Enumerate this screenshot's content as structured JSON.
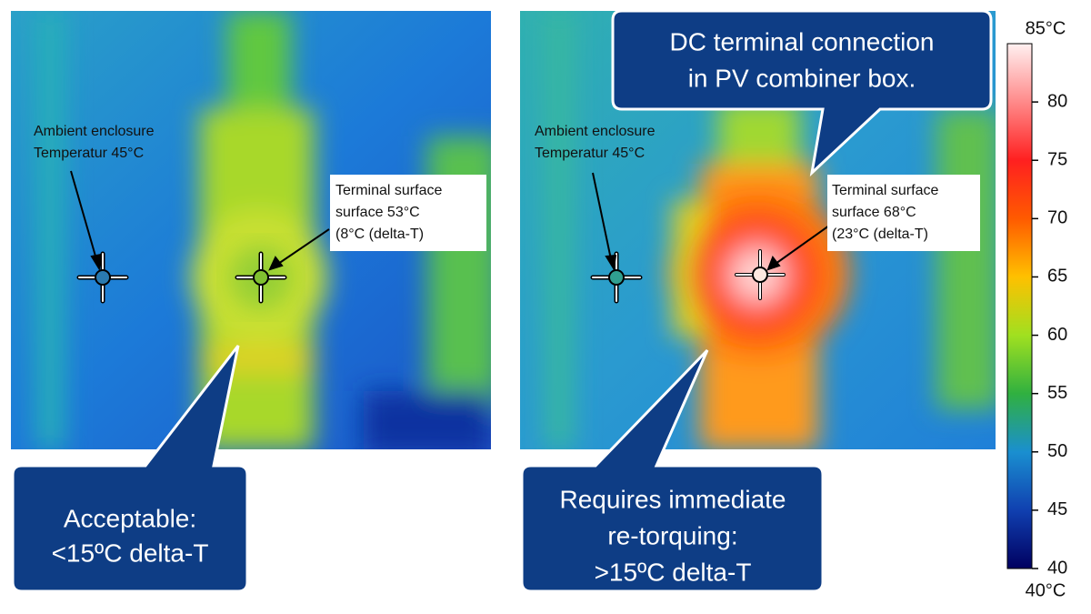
{
  "left_panel": {
    "ambient_label": [
      "Ambient enclosure",
      "Temperatur 45°C"
    ],
    "terminal_label": [
      "Terminal surface",
      "surface 53°C",
      "(8°C (delta-T)"
    ],
    "callout": [
      "Acceptable:",
      "<15ºC delta-T"
    ]
  },
  "right_panel": {
    "ambient_label": [
      "Ambient enclosure",
      "Temperatur 45°C"
    ],
    "terminal_label": [
      "Terminal surface",
      "surface 68°C",
      "(23°C (delta-T)"
    ],
    "top_callout": [
      "DC terminal connection",
      "in PV combiner box."
    ],
    "callout": [
      "Requires immediate",
      "re-torquing:",
      ">15ºC delta-T"
    ]
  },
  "colorbar": {
    "range": [
      {
        "value": 40,
        "label": "40°C"
      },
      {
        "value": 85,
        "label": "85°C"
      }
    ],
    "ticks": [
      40,
      45,
      50,
      55,
      60,
      65,
      70,
      75,
      80
    ]
  }
}
